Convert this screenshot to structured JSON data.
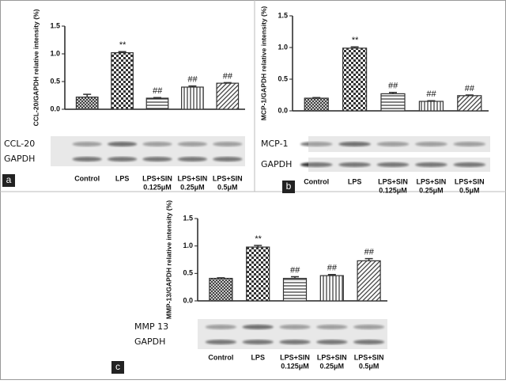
{
  "chart_data": [
    {
      "type": "bar",
      "panel_label": "a",
      "ylabel": "CCL-20/GAPDH relative intensity (%)",
      "categories": [
        [
          "Control"
        ],
        [
          "LPS"
        ],
        [
          "LPS+SIN",
          "0.125μM"
        ],
        [
          "LPS+SIN",
          "0.25μM"
        ],
        [
          "LPS+SIN",
          "0.5μM"
        ]
      ],
      "values": [
        0.22,
        1.02,
        0.2,
        0.4,
        0.47
      ],
      "errors": [
        0.05,
        0.02,
        0.01,
        0.02,
        0.01
      ],
      "annotations": [
        null,
        "**",
        "##",
        "##",
        "##"
      ],
      "blots": [
        "CCL-20",
        "GAPDH"
      ],
      "color": "#333333",
      "ylim": [
        0,
        1.5
      ],
      "yticks": [
        {
          "value": 0,
          "label": "0.0"
        },
        {
          "value": 0.5,
          "label": "0.5"
        },
        {
          "value": 1,
          "label": "1.0"
        },
        {
          "value": 1.5,
          "label": "1.5"
        }
      ]
    },
    {
      "type": "bar",
      "panel_label": "b",
      "ylabel": "MCP-1/GAPDH relative intensity (%)",
      "categories": [
        [
          "Control"
        ],
        [
          "LPS"
        ],
        [
          "LPS+SIN",
          "0.125μM"
        ],
        [
          "LPS+SIN",
          "0.25μM"
        ],
        [
          "LPS+SIN",
          "0.5μM"
        ]
      ],
      "values": [
        0.2,
        0.99,
        0.27,
        0.15,
        0.24
      ],
      "errors": [
        0.01,
        0.02,
        0.02,
        0.01,
        0.01
      ],
      "annotations": [
        null,
        "**",
        "##",
        "##",
        "##"
      ],
      "blots": [
        "MCP-1",
        "GAPDH"
      ],
      "color": "#333333",
      "ylim": [
        0,
        1.5
      ],
      "yticks": [
        {
          "value": 0,
          "label": "0.0"
        },
        {
          "value": 0.5,
          "label": "0.5"
        },
        {
          "value": 1,
          "label": "1.0"
        },
        {
          "value": 1.5,
          "label": "1.5"
        }
      ]
    },
    {
      "type": "bar",
      "panel_label": "c",
      "ylabel": "MMP-13/GAPDH relative intensity (%)",
      "categories": [
        [
          "Control"
        ],
        [
          "LPS"
        ],
        [
          "LPS+SIN",
          "0.125μM"
        ],
        [
          "LPS+SIN",
          "0.25μM"
        ],
        [
          "LPS+SIN",
          "0.5μM"
        ]
      ],
      "values": [
        0.41,
        0.98,
        0.41,
        0.46,
        0.73
      ],
      "errors": [
        0.01,
        0.03,
        0.03,
        0.02,
        0.04
      ],
      "annotations": [
        null,
        "**",
        "##",
        "##",
        "##"
      ],
      "blots": [
        "MMP 13",
        "GAPDH"
      ],
      "color": "#333333",
      "ylim": [
        0,
        1.5
      ],
      "yticks": [
        {
          "value": 0,
          "label": "0.0"
        },
        {
          "value": 0.5,
          "label": "0.5"
        },
        {
          "value": 1,
          "label": "1.0"
        },
        {
          "value": 1.5,
          "label": "1.5"
        }
      ]
    }
  ]
}
